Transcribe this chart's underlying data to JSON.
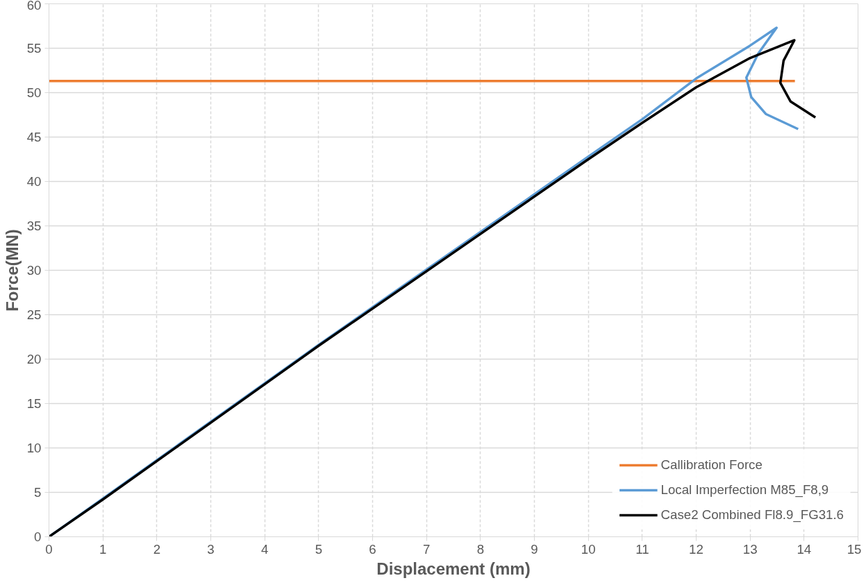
{
  "chart_data": {
    "type": "line",
    "xlabel": "Displacement (mm)",
    "ylabel": "Force(MN)",
    "xlim": [
      0,
      15
    ],
    "xticks": [
      0,
      1,
      2,
      3,
      4,
      5,
      6,
      7,
      8,
      9,
      10,
      11,
      12,
      13,
      14,
      15
    ],
    "ylim": [
      0,
      60
    ],
    "yticks": [
      0,
      5,
      10,
      15,
      20,
      25,
      30,
      35,
      40,
      45,
      50,
      55,
      60
    ],
    "grid": true,
    "legend": "bottom right",
    "marker": "none",
    "line_style": "solid",
    "series": [
      {
        "name": "Callibration Force",
        "color": "#ed7d31",
        "x": [
          0,
          13.83
        ],
        "values": [
          51.3,
          51.3
        ]
      },
      {
        "name": "Local Imperfection M85_F8,9",
        "color": "#5b9bd5",
        "x": [
          0,
          1,
          5,
          10,
          11,
          12,
          13,
          13.49,
          13.15,
          12.93,
          13.02,
          13.29,
          13.89
        ],
        "values": [
          0,
          4.3,
          21.6,
          42.8,
          47,
          51.6,
          55.3,
          57.3,
          54.4,
          51.7,
          49.5,
          47.6,
          45.9
        ]
      },
      {
        "name": "Case2 Combined Fl8.9_FG31.6",
        "color": "#000000",
        "x": [
          0,
          1,
          5,
          10,
          11,
          12,
          13,
          13.82,
          13.62,
          13.56,
          13.75,
          14.21
        ],
        "values": [
          0,
          4.2,
          21.5,
          42.5,
          46.6,
          50.6,
          53.9,
          55.9,
          53.6,
          51.1,
          49.0,
          47.2
        ]
      }
    ]
  }
}
